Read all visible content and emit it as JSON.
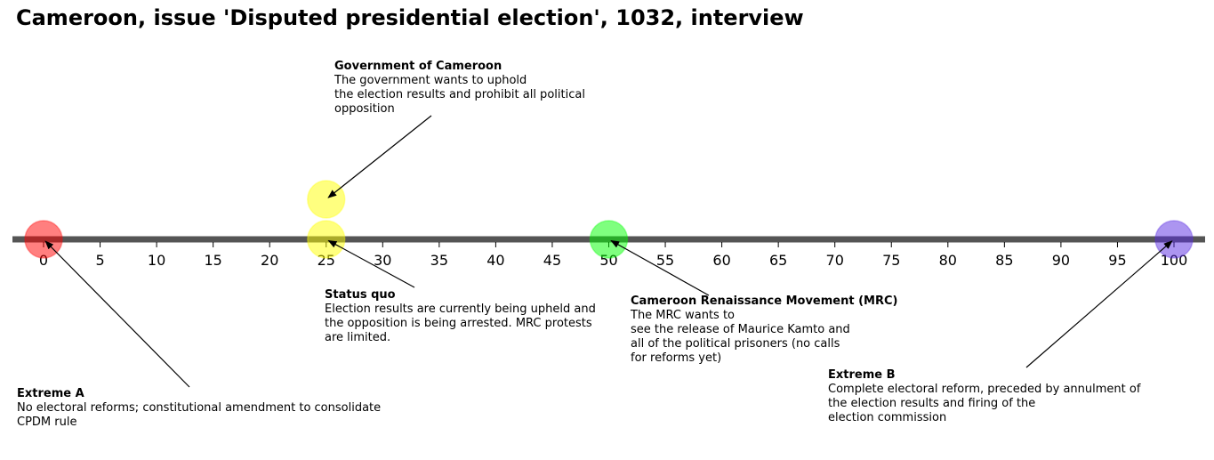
{
  "chart_data": {
    "type": "scatter",
    "title": "Cameroon, issue 'Disputed presidential election', 1032, interview",
    "xlim": [
      0,
      100
    ],
    "ticks": [
      "0",
      "5",
      "10",
      "15",
      "20",
      "25",
      "30",
      "35",
      "40",
      "45",
      "50",
      "55",
      "60",
      "65",
      "70",
      "75",
      "80",
      "85",
      "90",
      "95",
      "100"
    ],
    "grid": false,
    "points": [
      {
        "x": 0,
        "level": 0,
        "color": "#ff0000"
      },
      {
        "x": 25,
        "level": 0,
        "color": "#ffff00"
      },
      {
        "x": 25,
        "level": 1,
        "color": "#ffff00"
      },
      {
        "x": 50,
        "level": 0,
        "color": "#00ff00"
      },
      {
        "x": 100,
        "level": 0,
        "color": "#5a2be2"
      }
    ],
    "annotations": [
      {
        "point": 0,
        "title": "Extreme A",
        "lines": [
          "No electoral reforms; constitutional amendment to consolidate",
          "CPDM rule"
        ]
      },
      {
        "point": 1,
        "title": "Status quo",
        "lines": [
          "Election results are currently being upheld and",
          "the opposition is being arrested. MRC protests",
          "are limited."
        ]
      },
      {
        "point": 2,
        "title": "Government of Cameroon",
        "lines": [
          "The government wants to uphold",
          "the election results and prohibit all political",
          "opposition"
        ]
      },
      {
        "point": 3,
        "title": "Cameroon Renaissance Movement (MRC)",
        "lines": [
          "The MRC wants to",
          "see the release of Maurice Kamto and",
          "all of the political prisoners (no calls",
          "for reforms yet)"
        ]
      },
      {
        "point": 4,
        "title": "Extreme B",
        "lines": [
          "Complete electoral reform, preceded by annulment of",
          "the election results and firing of the",
          "election commission"
        ]
      }
    ],
    "colors": {
      "axis": "#555555",
      "arrow": "#000000"
    }
  }
}
